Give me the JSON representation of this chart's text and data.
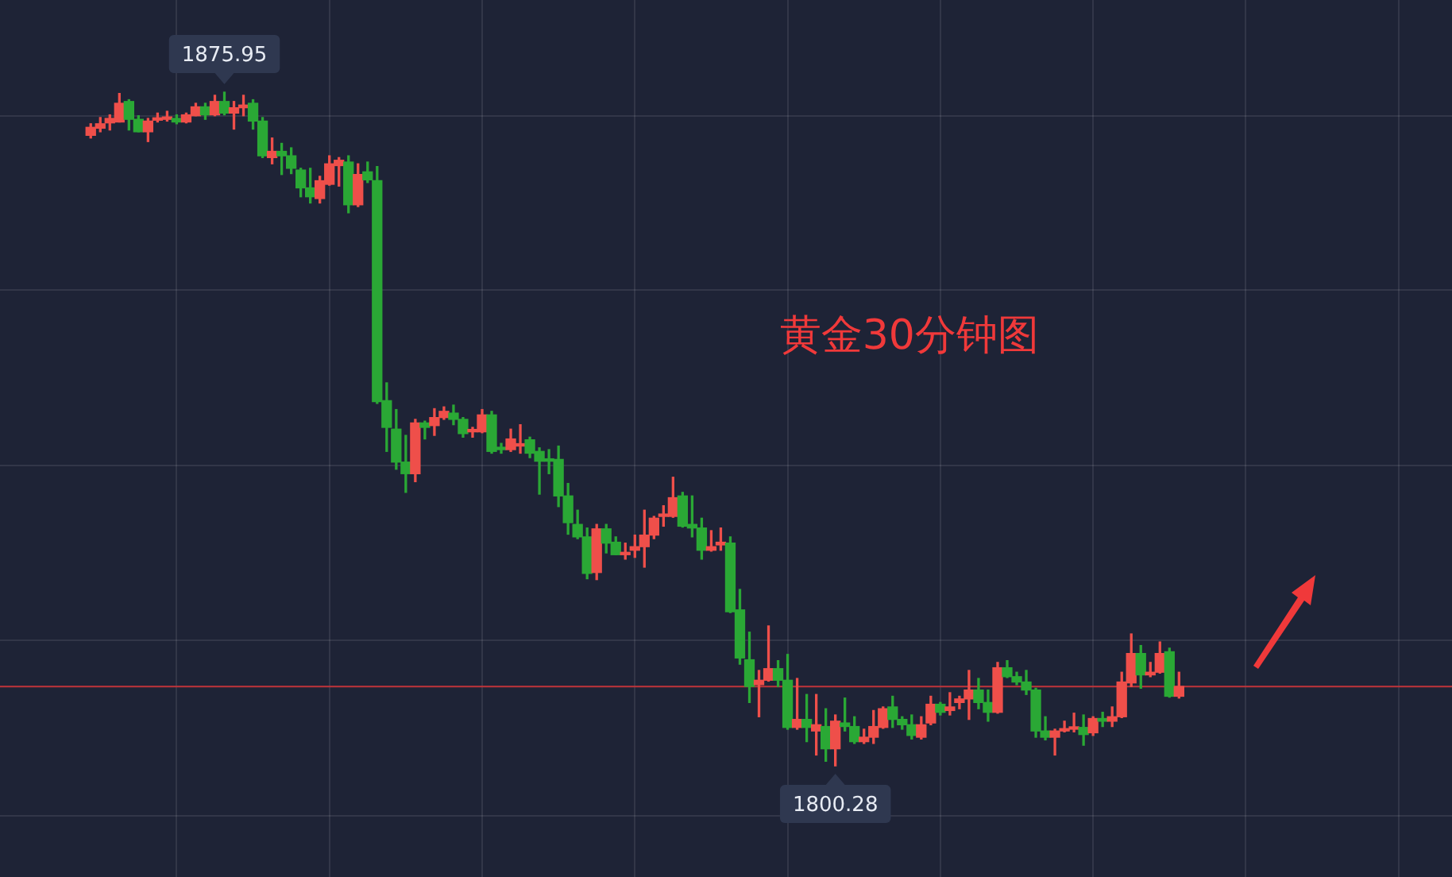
{
  "chart_data": {
    "type": "candlestick",
    "title": "黄金30分钟图",
    "categories": [
      null,
      null,
      null,
      null,
      null,
      null,
      null,
      null,
      null,
      null,
      null,
      null,
      null,
      null,
      null,
      null,
      null,
      null,
      null,
      null,
      null,
      null,
      null,
      null,
      null,
      null,
      null,
      null,
      null,
      null,
      null,
      null,
      null,
      null,
      null,
      null,
      null,
      null,
      null,
      null,
      null,
      null,
      null,
      null,
      null,
      null,
      null,
      null,
      null,
      null,
      null,
      null,
      null,
      null,
      null,
      null,
      null,
      null,
      null,
      null,
      null,
      null,
      null,
      null,
      null,
      null,
      null,
      null,
      null,
      null,
      null,
      null,
      null,
      null,
      null,
      null,
      null,
      null,
      null,
      null,
      null,
      null,
      null,
      null,
      null,
      null,
      null,
      null,
      null,
      null,
      null,
      null,
      null,
      null,
      null,
      null,
      null,
      null,
      null,
      null,
      null,
      null,
      null,
      null,
      null,
      null,
      null,
      null,
      null,
      null,
      null,
      null,
      null,
      null,
      null
    ],
    "ohlc": [
      [
        1871.1,
        1872.4,
        1870.8,
        1872.0
      ],
      [
        1871.9,
        1873.1,
        1871.5,
        1872.4
      ],
      [
        1872.5,
        1873.4,
        1871.7,
        1873.0
      ],
      [
        1872.6,
        1875.8,
        1872.6,
        1874.7
      ],
      [
        1874.9,
        1875.1,
        1871.7,
        1872.9
      ],
      [
        1872.9,
        1873.3,
        1871.5,
        1871.5
      ],
      [
        1871.5,
        1873.0,
        1870.4,
        1872.7
      ],
      [
        1872.8,
        1873.6,
        1872.6,
        1873.0
      ],
      [
        1872.9,
        1873.8,
        1872.7,
        1873.1
      ],
      [
        1873.0,
        1873.4,
        1872.4,
        1872.6
      ],
      [
        1872.6,
        1873.6,
        1872.5,
        1873.4
      ],
      [
        1873.3,
        1874.7,
        1873.3,
        1874.3
      ],
      [
        1874.3,
        1874.7,
        1872.9,
        1873.4
      ],
      [
        1873.4,
        1875.6,
        1873.3,
        1874.9
      ],
      [
        1874.9,
        1875.95,
        1873.4,
        1873.6
      ],
      [
        1873.6,
        1874.9,
        1871.8,
        1874.2
      ],
      [
        1874.2,
        1875.6,
        1873.3,
        1874.5
      ],
      [
        1874.7,
        1875.1,
        1871.8,
        1872.7
      ],
      [
        1872.7,
        1873.1,
        1868.6,
        1868.8
      ],
      [
        1868.6,
        1870.8,
        1867.9,
        1869.3
      ],
      [
        1869.3,
        1870.2,
        1866.7,
        1868.8
      ],
      [
        1868.8,
        1869.7,
        1866.8,
        1867.4
      ],
      [
        1867.2,
        1867.4,
        1864.2,
        1865.2
      ],
      [
        1865.2,
        1867.4,
        1863.5,
        1864.2
      ],
      [
        1864.0,
        1866.5,
        1863.5,
        1866.0
      ],
      [
        1865.6,
        1868.8,
        1865.5,
        1867.9
      ],
      [
        1867.7,
        1868.6,
        1865.4,
        1868.3
      ],
      [
        1868.1,
        1868.8,
        1862.4,
        1863.3
      ],
      [
        1863.3,
        1867.9,
        1863.1,
        1866.7
      ],
      [
        1867.0,
        1868.1,
        1865.8,
        1866.1
      ],
      [
        1866.0,
        1867.6,
        1841.0,
        1841.2
      ],
      [
        1841.3,
        1843.3,
        1835.6,
        1838.3
      ],
      [
        1838.1,
        1840.3,
        1833.6,
        1834.4
      ],
      [
        1834.4,
        1837.4,
        1831.0,
        1833.1
      ],
      [
        1833.1,
        1839.2,
        1832.2,
        1838.8
      ],
      [
        1838.8,
        1839.0,
        1837.0,
        1838.3
      ],
      [
        1838.5,
        1840.4,
        1837.4,
        1839.4
      ],
      [
        1839.4,
        1840.6,
        1839.2,
        1840.1
      ],
      [
        1839.9,
        1840.8,
        1838.6,
        1839.2
      ],
      [
        1839.2,
        1839.4,
        1837.2,
        1837.6
      ],
      [
        1837.8,
        1838.3,
        1837.2,
        1837.9
      ],
      [
        1837.8,
        1840.3,
        1837.7,
        1839.7
      ],
      [
        1839.7,
        1840.1,
        1835.4,
        1835.6
      ],
      [
        1836.0,
        1836.5,
        1835.4,
        1835.8
      ],
      [
        1835.8,
        1838.1,
        1835.6,
        1837.0
      ],
      [
        1836.2,
        1838.6,
        1835.4,
        1836.3
      ],
      [
        1836.9,
        1837.2,
        1834.9,
        1835.4
      ],
      [
        1835.6,
        1836.0,
        1830.8,
        1834.5
      ],
      [
        1834.7,
        1835.8,
        1833.1,
        1834.5
      ],
      [
        1834.7,
        1836.2,
        1829.4,
        1830.6
      ],
      [
        1830.6,
        1832.0,
        1826.3,
        1827.6
      ],
      [
        1827.4,
        1829.0,
        1825.8,
        1826.0
      ],
      [
        1826.0,
        1827.0,
        1821.3,
        1821.9
      ],
      [
        1822.0,
        1827.4,
        1821.2,
        1826.9
      ],
      [
        1826.9,
        1827.4,
        1824.2,
        1825.3
      ],
      [
        1825.4,
        1826.0,
        1824.0,
        1824.0
      ],
      [
        1824.0,
        1825.3,
        1823.5,
        1824.2
      ],
      [
        1824.5,
        1826.2,
        1823.7,
        1824.9
      ],
      [
        1824.9,
        1829.0,
        1822.6,
        1826.2
      ],
      [
        1826.2,
        1828.3,
        1825.8,
        1828.1
      ],
      [
        1828.3,
        1829.5,
        1827.2,
        1828.5
      ],
      [
        1828.3,
        1832.7,
        1828.2,
        1830.4
      ],
      [
        1830.6,
        1831.0,
        1827.1,
        1827.2
      ],
      [
        1827.4,
        1830.6,
        1826.0,
        1827.0
      ],
      [
        1827.0,
        1828.1,
        1823.5,
        1824.5
      ],
      [
        1824.5,
        1826.7,
        1824.4,
        1824.9
      ],
      [
        1825.1,
        1827.0,
        1824.5,
        1825.4
      ],
      [
        1825.3,
        1826.0,
        1817.5,
        1817.6
      ],
      [
        1817.8,
        1820.1,
        1811.7,
        1812.4
      ],
      [
        1812.2,
        1815.3,
        1807.4,
        1809.2
      ],
      [
        1809.4,
        1811.0,
        1805.8,
        1809.9
      ],
      [
        1809.9,
        1816.0,
        1809.8,
        1811.2
      ],
      [
        1811.2,
        1812.1,
        1809.2,
        1809.9
      ],
      [
        1809.9,
        1812.8,
        1804.4,
        1804.6
      ],
      [
        1804.6,
        1810.1,
        1804.4,
        1805.5
      ],
      [
        1805.5,
        1808.3,
        1803.0,
        1804.6
      ],
      [
        1804.2,
        1808.3,
        1801.5,
        1804.9
      ],
      [
        1804.7,
        1806.7,
        1800.8,
        1802.2
      ],
      [
        1802.2,
        1806.0,
        1800.28,
        1805.3
      ],
      [
        1805.1,
        1807.9,
        1804.2,
        1804.7
      ],
      [
        1804.7,
        1805.8,
        1802.8,
        1803.0
      ],
      [
        1803.0,
        1804.4,
        1802.8,
        1803.5
      ],
      [
        1803.5,
        1806.5,
        1802.8,
        1804.7
      ],
      [
        1804.6,
        1806.9,
        1804.5,
        1806.7
      ],
      [
        1806.9,
        1808.1,
        1804.6,
        1805.5
      ],
      [
        1805.5,
        1805.8,
        1804.4,
        1804.9
      ],
      [
        1804.9,
        1806.0,
        1803.3,
        1803.7
      ],
      [
        1803.5,
        1805.8,
        1803.3,
        1804.9
      ],
      [
        1805.1,
        1808.1,
        1804.9,
        1807.2
      ],
      [
        1807.2,
        1807.4,
        1806.0,
        1806.3
      ],
      [
        1806.5,
        1808.5,
        1806.0,
        1806.9
      ],
      [
        1807.4,
        1808.1,
        1806.7,
        1807.8
      ],
      [
        1807.8,
        1811.0,
        1805.5,
        1808.8
      ],
      [
        1808.8,
        1810.1,
        1806.7,
        1807.4
      ],
      [
        1807.4,
        1808.8,
        1805.3,
        1806.3
      ],
      [
        1806.3,
        1811.9,
        1806.2,
        1811.3
      ],
      [
        1811.3,
        1812.1,
        1810.2,
        1810.3
      ],
      [
        1810.3,
        1810.8,
        1809.4,
        1809.7
      ],
      [
        1809.7,
        1811.0,
        1808.3,
        1808.8
      ],
      [
        1808.8,
        1809.0,
        1803.5,
        1804.2
      ],
      [
        1804.2,
        1805.8,
        1803.2,
        1803.5
      ],
      [
        1803.5,
        1804.4,
        1801.5,
        1804.2
      ],
      [
        1804.2,
        1805.3,
        1804.1,
        1804.4
      ],
      [
        1804.4,
        1806.2,
        1804.1,
        1804.6
      ],
      [
        1804.6,
        1806.0,
        1802.6,
        1803.8
      ],
      [
        1804.0,
        1805.8,
        1803.7,
        1805.6
      ],
      [
        1805.6,
        1806.3,
        1804.7,
        1805.3
      ],
      [
        1805.3,
        1806.9,
        1804.7,
        1805.8
      ],
      [
        1805.8,
        1810.8,
        1805.7,
        1809.7
      ],
      [
        1809.6,
        1815.1,
        1809.2,
        1812.9
      ],
      [
        1812.9,
        1813.8,
        1809.0,
        1810.5
      ],
      [
        1810.5,
        1811.9,
        1810.3,
        1810.8
      ],
      [
        1810.8,
        1814.2,
        1810.7,
        1812.9
      ],
      [
        1813.1,
        1813.5,
        1808.0,
        1808.1
      ],
      [
        1808.1,
        1810.8,
        1807.9,
        1809.2
      ]
    ],
    "colors": [
      "#ef4f4a",
      "#ef4f4a",
      "#ef4f4a",
      "#ef4f4a",
      "#2aa835",
      "#2aa835",
      "#ef4f4a",
      "#ef4f4a",
      "#ef4f4a",
      "#2aa835",
      "#ef4f4a",
      "#ef4f4a",
      "#2aa835",
      "#ef4f4a",
      "#2aa835",
      "#ef4f4a",
      "#ef4f4a",
      "#2aa835",
      "#2aa835",
      "#ef4f4a",
      "#2aa835",
      "#2aa835",
      "#2aa835",
      "#2aa835",
      "#ef4f4a",
      "#ef4f4a",
      "#ef4f4a",
      "#2aa835",
      "#ef4f4a",
      "#2aa835",
      "#2aa835",
      "#2aa835",
      "#2aa835",
      "#2aa835",
      "#ef4f4a",
      "#2aa835",
      "#ef4f4a",
      "#ef4f4a",
      "#2aa835",
      "#2aa835",
      "#ef4f4a",
      "#ef4f4a",
      "#2aa835",
      "#2aa835",
      "#ef4f4a",
      "#ef4f4a",
      "#2aa835",
      "#2aa835",
      "#2aa835",
      "#2aa835",
      "#2aa835",
      "#2aa835",
      "#2aa835",
      "#ef4f4a",
      "#2aa835",
      "#2aa835",
      "#ef4f4a",
      "#ef4f4a",
      "#ef4f4a",
      "#ef4f4a",
      "#ef4f4a",
      "#ef4f4a",
      "#2aa835",
      "#2aa835",
      "#2aa835",
      "#ef4f4a",
      "#ef4f4a",
      "#2aa835",
      "#2aa835",
      "#2aa835",
      "#ef4f4a",
      "#ef4f4a",
      "#2aa835",
      "#2aa835",
      "#ef4f4a",
      "#2aa835",
      "#ef4f4a",
      "#2aa835",
      "#ef4f4a",
      "#2aa835",
      "#2aa835",
      "#ef4f4a",
      "#ef4f4a",
      "#ef4f4a",
      "#2aa835",
      "#2aa835",
      "#2aa835",
      "#ef4f4a",
      "#ef4f4a",
      "#2aa835",
      "#ef4f4a",
      "#ef4f4a",
      "#ef4f4a",
      "#2aa835",
      "#2aa835",
      "#ef4f4a",
      "#2aa835",
      "#2aa835",
      "#2aa835",
      "#2aa835",
      "#2aa835",
      "#ef4f4a",
      "#ef4f4a",
      "#ef4f4a",
      "#2aa835",
      "#ef4f4a",
      "#2aa835",
      "#ef4f4a",
      "#ef4f4a",
      "#ef4f4a",
      "#2aa835",
      "#ef4f4a",
      "#ef4f4a",
      "#2aa835",
      "#ef4f4a"
    ],
    "ylim": [
      1787.8,
      1886.3
    ],
    "yticks": [
      {
        "value": 1873.3,
        "label": null
      },
      {
        "value": 1853.7,
        "label": null
      },
      {
        "value": 1834.0,
        "label": null
      },
      {
        "value": 1814.4,
        "label": null
      },
      {
        "value": 1794.7,
        "label": null
      }
    ],
    "tick_labels": false,
    "grid": true,
    "ref_lines": [
      {
        "axis": "y",
        "value": 1809.2,
        "color": "#c0343a"
      }
    ],
    "annotations": [
      {
        "text": "1875.95",
        "y": 1875.95
      },
      {
        "text": "1800.28",
        "y": 1800.28
      }
    ]
  }
}
